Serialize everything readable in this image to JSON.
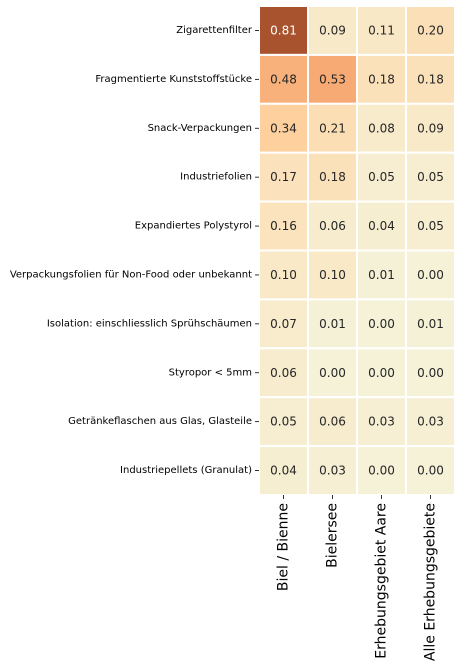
{
  "chart_data": {
    "type": "heatmap",
    "title": "",
    "xlabel": "",
    "ylabel": "",
    "columns": [
      "Biel / Bienne",
      "Bielersee",
      "Erhebungsgebiet Aare",
      "Alle Erhebungsgebiete"
    ],
    "rows": [
      "Zigarettenfilter",
      "Fragmentierte Kunststoffstücke",
      "Snack-Verpackungen",
      "Industriefolien ",
      "Expandiertes Polystyrol",
      "Verpackungsfolien für Non-Food oder unbekannt ",
      "Isolation: einschliesslich Sprühschäumen",
      "Styropor < 5mm",
      "Getränkeflaschen aus Glas, Glasteile ",
      "Industriepellets (Granulat) "
    ],
    "values": [
      [
        0.81,
        0.09,
        0.11,
        0.2
      ],
      [
        0.48,
        0.53,
        0.18,
        0.18
      ],
      [
        0.34,
        0.21,
        0.08,
        0.09
      ],
      [
        0.17,
        0.18,
        0.05,
        0.05
      ],
      [
        0.16,
        0.06,
        0.04,
        0.05
      ],
      [
        0.1,
        0.1,
        0.01,
        0.0
      ],
      [
        0.07,
        0.01,
        0.0,
        0.01
      ],
      [
        0.06,
        0.0,
        0.0,
        0.0
      ],
      [
        0.05,
        0.06,
        0.03,
        0.03
      ],
      [
        0.04,
        0.03,
        0.0,
        0.0
      ]
    ],
    "value_format": "0.00",
    "colormap": [
      "#f5f2d8",
      "#fbe3bd",
      "#fdd3a1",
      "#f8b07a",
      "#f49a62",
      "#a8522e"
    ],
    "grid": false,
    "colorbar": false
  }
}
